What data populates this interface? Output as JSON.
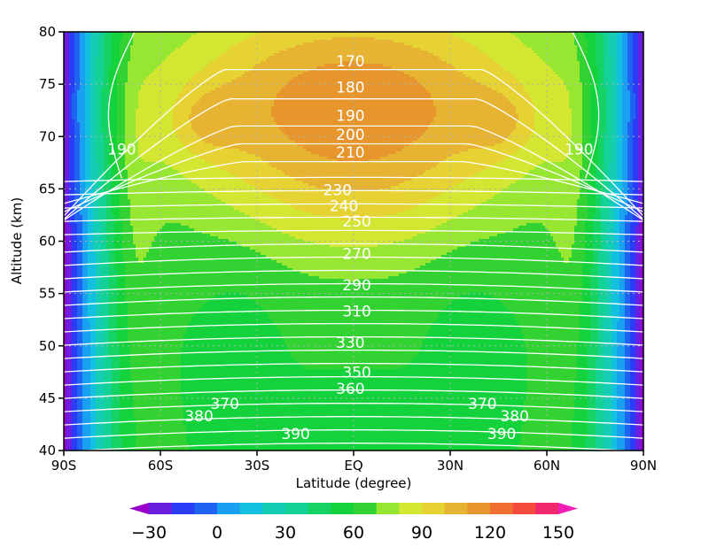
{
  "chart_data": {
    "type": "contour",
    "xlabel": "Latitude (degree)",
    "ylabel": "Altitude (km)",
    "xlim": [
      -90,
      90
    ],
    "ylim": [
      40,
      80
    ],
    "x_ticks": [
      {
        "value": -90,
        "label": "90S"
      },
      {
        "value": -60,
        "label": "60S"
      },
      {
        "value": -30,
        "label": "30S"
      },
      {
        "value": 0,
        "label": "EQ"
      },
      {
        "value": 30,
        "label": "30N"
      },
      {
        "value": 60,
        "label": "60N"
      },
      {
        "value": 90,
        "label": "90N"
      }
    ],
    "y_ticks": [
      {
        "value": 40,
        "label": "40"
      },
      {
        "value": 45,
        "label": "45"
      },
      {
        "value": 50,
        "label": "50"
      },
      {
        "value": 55,
        "label": "55"
      },
      {
        "value": 60,
        "label": "60"
      },
      {
        "value": 65,
        "label": "65"
      },
      {
        "value": 70,
        "label": "70"
      },
      {
        "value": 75,
        "label": "75"
      },
      {
        "value": 80,
        "label": "80"
      }
    ],
    "grid": "dotted",
    "filled_field": {
      "levels": [
        -30,
        -20,
        -10,
        0,
        10,
        20,
        30,
        40,
        50,
        60,
        70,
        80,
        90,
        100,
        110,
        120,
        130,
        140,
        150
      ],
      "colors": [
        "#9900cc",
        "#6a1fe0",
        "#2a3cf5",
        "#1e64f0",
        "#1aa0f0",
        "#14c0e0",
        "#14cdb4",
        "#14d296",
        "#14d264",
        "#14d23c",
        "#32d232",
        "#96e632",
        "#d2e632",
        "#e6d232",
        "#e6b432",
        "#e6962d",
        "#f06e32",
        "#f54b3c",
        "#f0286e",
        "#f01eb4"
      ],
      "colorbar_labels": [
        "−30",
        "0",
        "30",
        "60",
        "90",
        "120",
        "150"
      ],
      "colorbar_label_values": [
        -30,
        0,
        30,
        60,
        90,
        120,
        150
      ],
      "colorbar_extend": "both"
    },
    "line_field": {
      "color": "#ffffff",
      "labels": [
        {
          "text": "170",
          "lat": -1,
          "alt": 77.2
        },
        {
          "text": "180",
          "lat": -1,
          "alt": 74.7
        },
        {
          "text": "190",
          "lat": -1,
          "alt": 72.0
        },
        {
          "text": "200",
          "lat": -1,
          "alt": 70.2
        },
        {
          "text": "210",
          "lat": -1,
          "alt": 68.5
        },
        {
          "text": "190",
          "lat": -72,
          "alt": 68.8
        },
        {
          "text": "190",
          "lat": 70,
          "alt": 68.8
        },
        {
          "text": "230",
          "lat": -5,
          "alt": 64.9
        },
        {
          "text": "240",
          "lat": -3,
          "alt": 63.4
        },
        {
          "text": "250",
          "lat": 1,
          "alt": 61.9
        },
        {
          "text": "270",
          "lat": 1,
          "alt": 58.8
        },
        {
          "text": "290",
          "lat": 1,
          "alt": 55.8
        },
        {
          "text": "310",
          "lat": 1,
          "alt": 53.3
        },
        {
          "text": "330",
          "lat": -1,
          "alt": 50.3
        },
        {
          "text": "350",
          "lat": 1,
          "alt": 47.5
        },
        {
          "text": "360",
          "lat": -1,
          "alt": 45.9
        },
        {
          "text": "370",
          "lat": -40,
          "alt": 44.5
        },
        {
          "text": "370",
          "lat": 40,
          "alt": 44.5
        },
        {
          "text": "380",
          "lat": -48,
          "alt": 43.3
        },
        {
          "text": "380",
          "lat": 50,
          "alt": 43.3
        },
        {
          "text": "390",
          "lat": -18,
          "alt": 41.6
        },
        {
          "text": "390",
          "lat": 46,
          "alt": 41.6
        }
      ]
    }
  }
}
